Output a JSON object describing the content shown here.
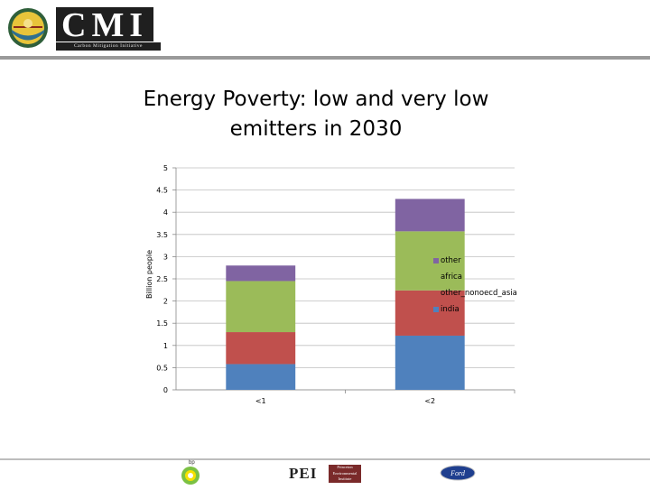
{
  "header": {
    "logo_letters": "CMI",
    "logo_subtitle": "Carbon Mitigation Initiative"
  },
  "slide": {
    "title_line1": "Energy Poverty: low and very low",
    "title_line2": "emitters in 2030"
  },
  "chart_data": {
    "type": "bar",
    "stacked": true,
    "categories": [
      "<1",
      "<2"
    ],
    "series": [
      {
        "name": "india",
        "color": "#4f81bd",
        "values": [
          0.58,
          1.22
        ]
      },
      {
        "name": "other_nonoecd_asia",
        "color": "#c0504d",
        "values": [
          0.72,
          1.02
        ]
      },
      {
        "name": "africa",
        "color": "#9bbb59",
        "values": [
          1.15,
          1.33
        ]
      },
      {
        "name": "other",
        "color": "#8064a2",
        "values": [
          0.35,
          0.73
        ]
      }
    ],
    "legend_order": [
      "other",
      "africa",
      "other_nonoecd_asia",
      "india"
    ],
    "title": "Energy Poverty: low and very low emitters in 2030",
    "xlabel": "",
    "ylabel": "Billion people",
    "ylim": [
      0,
      5
    ],
    "yticks": [
      "0",
      "0.5",
      "1",
      "1.5",
      "2",
      "2.5",
      "3",
      "3.5",
      "4",
      "4.5",
      "5"
    ],
    "grid": true,
    "legend_position": "right"
  },
  "footer": {
    "bp_label": "bp",
    "pei_letters": "PEI",
    "pei_subtitle": "Princeton Environmental Institute",
    "ford_label": "Ford"
  }
}
